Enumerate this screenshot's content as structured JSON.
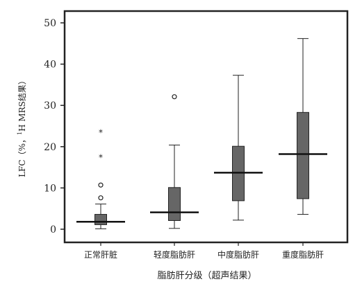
{
  "chart_data": {
    "type": "box",
    "xlabel": "脂肪肝分级（超声结果）",
    "ylabel": "LFC（%，¹H MRS结果）",
    "ylim": [
      -3,
      53
    ],
    "yticks": [
      0,
      10,
      20,
      30,
      40,
      50
    ],
    "categories": [
      "正常肝脏",
      "轻度脂肪肝",
      "中度脂肪肝",
      "重度脂肪肝"
    ],
    "boxes": [
      {
        "category": "正常肝脏",
        "whisker_low": 0.1,
        "q1": 1.1,
        "median": 1.8,
        "q3": 3.6,
        "whisker_high": 6.1,
        "outliers": [
          {
            "value": 7.6,
            "marker": "circle"
          },
          {
            "value": 10.7,
            "marker": "circle"
          },
          {
            "value": 17.7,
            "marker": "star"
          },
          {
            "value": 23.7,
            "marker": "star"
          }
        ]
      },
      {
        "category": "轻度脂肪肝",
        "whisker_low": 0.2,
        "q1": 2.1,
        "median": 4.1,
        "q3": 10.1,
        "whisker_high": 20.4,
        "outliers": [
          {
            "value": 32.1,
            "marker": "circle"
          }
        ]
      },
      {
        "category": "中度脂肪肝",
        "whisker_low": 2.2,
        "q1": 6.9,
        "median": 13.7,
        "q3": 20.1,
        "whisker_high": 37.3,
        "outliers": []
      },
      {
        "category": "重度脂肪肝",
        "whisker_low": 3.6,
        "q1": 7.4,
        "median": 18.2,
        "q3": 28.3,
        "whisker_high": 46.2,
        "outliers": []
      }
    ],
    "box_color": "#666666",
    "line_color": "#222222"
  }
}
